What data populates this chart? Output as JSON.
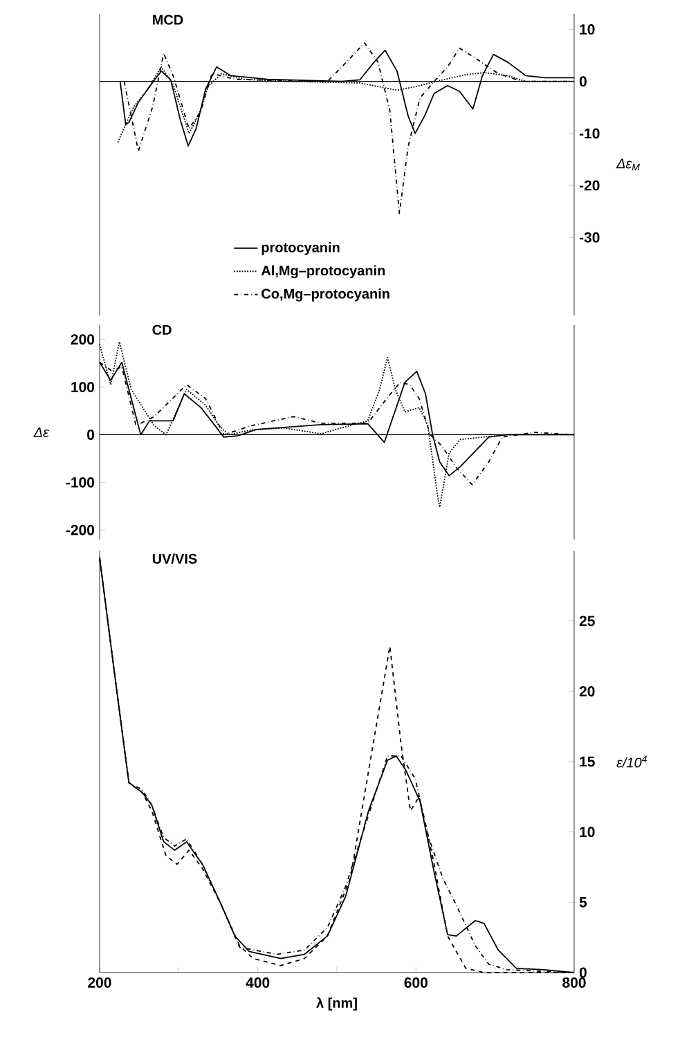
{
  "chart_data": [
    {
      "type": "line",
      "title": "MCD",
      "ylabel": "Δε$_{M}$",
      "xlim": [
        200,
        800
      ],
      "ylim": [
        -45,
        13
      ],
      "yticks": [
        10,
        0,
        -10,
        -20,
        -30
      ],
      "tick_labels": "y",
      "legend": "bottom",
      "ref_lines": [
        {
          "axis": "y",
          "value": 0
        }
      ],
      "series": [
        {
          "name": "protocyanin",
          "color": "#000000",
          "line_style": "solid",
          "x": [
            226,
            233,
            237,
            249,
            267,
            278,
            290,
            302,
            312,
            322,
            334,
            348,
            366,
            412,
            506,
            529,
            547,
            561,
            576,
            590,
            599,
            611,
            623,
            640,
            655,
            672,
            684,
            698,
            716,
            739,
            763,
            800
          ],
          "values": [
            0,
            -8.3,
            -7.9,
            -4,
            -0.2,
            2,
            0.3,
            -7.4,
            -12.4,
            -9.1,
            -1.5,
            2.8,
            1.1,
            0.4,
            0,
            0.3,
            3.7,
            6,
            2,
            -6.6,
            -10,
            -6.6,
            -2.3,
            -0.8,
            -1.9,
            -5.3,
            1.1,
            5.2,
            3.7,
            1.1,
            0.7,
            0.7
          ]
        },
        {
          "name": "Al,Mg–protocyanin",
          "color": "#000000",
          "line_style": "dotted",
          "x": [
            223,
            243,
            261,
            278,
            293,
            313,
            325,
            337,
            354,
            383,
            442,
            529,
            576,
            599,
            634,
            663,
            686,
            716,
            739,
            800
          ],
          "values": [
            -11.7,
            -4.9,
            -1.5,
            2.8,
            -0.6,
            -10,
            -6.6,
            -1,
            1.5,
            0.4,
            0,
            -0.3,
            -1.7,
            -1,
            0.3,
            1.3,
            1.7,
            1.1,
            0,
            0
          ]
        },
        {
          "name": "Co,Mg–protocyanin",
          "color": "#000000",
          "line_style": "dashdot",
          "x": [
            231,
            249,
            267,
            281,
            293,
            313,
            328,
            342,
            372,
            471,
            488,
            512,
            535,
            552,
            567,
            579,
            590,
            605,
            623,
            640,
            655,
            675,
            704,
            734,
            800
          ],
          "values": [
            0,
            -13.4,
            -4.9,
            5.4,
            1.1,
            -9.1,
            -5.7,
            1.5,
            0.4,
            0,
            0,
            3.7,
            7.4,
            3.7,
            -5.7,
            -25.4,
            -12.6,
            -3.2,
            0,
            2.8,
            6.4,
            4.5,
            1.5,
            0,
            0
          ]
        }
      ]
    },
    {
      "type": "line",
      "title": "CD",
      "ylabel": "Δε",
      "xlim": [
        200,
        800
      ],
      "ylim": [
        -220,
        230
      ],
      "yticks": [
        200,
        100,
        0,
        -100,
        -200
      ],
      "tick_labels": "y",
      "ref_lines": [
        {
          "axis": "y",
          "value": 0
        }
      ],
      "series": [
        {
          "color": "#000000",
          "line_style": "solid",
          "x": [
            200,
            214,
            228,
            252,
            263,
            293,
            307,
            328,
            346,
            357,
            375,
            398,
            480,
            539,
            560,
            586,
            601,
            612,
            621,
            630,
            642,
            656,
            692,
            715,
            800
          ],
          "values": [
            152,
            114,
            152,
            0,
            29,
            29,
            86,
            57,
            19,
            -5,
            -2,
            11,
            21,
            23,
            -16,
            110,
            133,
            86,
            0,
            -57,
            -86,
            -67,
            -5,
            0,
            0
          ]
        },
        {
          "color": "#000000",
          "line_style": "dotted",
          "x": [
            200,
            214,
            225,
            240,
            269,
            284,
            310,
            334,
            351,
            363,
            392,
            433,
            480,
            516,
            539,
            554,
            564,
            574,
            586,
            604,
            615,
            627,
            630,
            642,
            656,
            715,
            800
          ],
          "values": [
            190,
            105,
            195,
            95,
            19,
            0,
            95,
            62,
            19,
            0,
            10,
            14,
            2,
            19,
            29,
            95,
            162,
            95,
            48,
            57,
            19,
            -124,
            -152,
            -38,
            -10,
            0,
            0
          ]
        },
        {
          "color": "#000000",
          "line_style": "dashdot",
          "x": [
            200,
            216,
            228,
            246,
            258,
            269,
            310,
            334,
            357,
            392,
            445,
            480,
            539,
            563,
            580,
            592,
            604,
            618,
            633,
            650,
            671,
            692,
            709,
            750,
            800
          ],
          "values": [
            152,
            133,
            143,
            19,
            29,
            38,
            105,
            76,
            0,
            19,
            38,
            24,
            24,
            76,
            110,
            105,
            76,
            0,
            -24,
            -67,
            -105,
            -57,
            -5,
            5,
            0
          ]
        }
      ]
    },
    {
      "type": "line",
      "title": "UV/VIS",
      "xlabel": "λ [nm]",
      "ylabel": "ε/10$^{4}$",
      "xlim": [
        200,
        800
      ],
      "ylim": [
        0,
        30
      ],
      "xticks": [
        200,
        {
          "value": 300,
          "label": null
        },
        400,
        {
          "value": 500,
          "label": null
        },
        600,
        {
          "value": 700,
          "label": null
        },
        800
      ],
      "yticks": [
        0,
        5,
        10,
        15,
        20,
        25
      ],
      "series": [
        {
          "color": "#000000",
          "line_style": "solid",
          "x": [
            200,
            219,
            237,
            254,
            266,
            281,
            295,
            310,
            330,
            354,
            371,
            389,
            429,
            459,
            488,
            511,
            540,
            564,
            575,
            587,
            605,
            622,
            640,
            651,
            675,
            686,
            704,
            727,
            762,
            800
          ],
          "values": [
            29.5,
            21.2,
            13.5,
            12.8,
            11.9,
            9.3,
            8.7,
            9.3,
            7.7,
            4.8,
            2.6,
            1.5,
            1.0,
            1.3,
            2.6,
            5.4,
            11.5,
            15.1,
            15.4,
            14.4,
            12.2,
            7.4,
            2.7,
            2.6,
            3.7,
            3.5,
            1.6,
            0.3,
            0.2,
            0
          ]
        },
        {
          "color": "#000000",
          "line_style": "dashed",
          "x": [
            200,
            219,
            237,
            254,
            266,
            284,
            298,
            313,
            330,
            354,
            377,
            394,
            429,
            459,
            488,
            517,
            546,
            567,
            581,
            593,
            604,
            622,
            640,
            663,
            686,
            800
          ],
          "values": [
            29.5,
            21.2,
            13.5,
            12.8,
            11.5,
            8.3,
            7.7,
            8.7,
            7.4,
            4.8,
            1.9,
            1.0,
            0.5,
            1.0,
            2.6,
            6.7,
            16.3,
            23.2,
            16.3,
            11.5,
            12.5,
            8.0,
            2.6,
            0.3,
            0,
            0
          ]
        },
        {
          "color": "#000000",
          "line_style": "dashdot",
          "x": [
            200,
            219,
            237,
            254,
            266,
            281,
            295,
            310,
            330,
            354,
            377,
            424,
            459,
            488,
            511,
            540,
            564,
            581,
            599,
            616,
            634,
            651,
            675,
            692,
            715,
            800
          ],
          "values": [
            29.5,
            21.2,
            13.5,
            13,
            11.9,
            9.6,
            9.0,
            9.5,
            7.7,
            4.8,
            1.8,
            1.3,
            1.6,
            3.2,
            6.1,
            11.2,
            15.4,
            15.4,
            13.8,
            9.6,
            6.7,
            4.8,
            1.9,
            0.6,
            0.2,
            0
          ]
        }
      ]
    }
  ]
}
